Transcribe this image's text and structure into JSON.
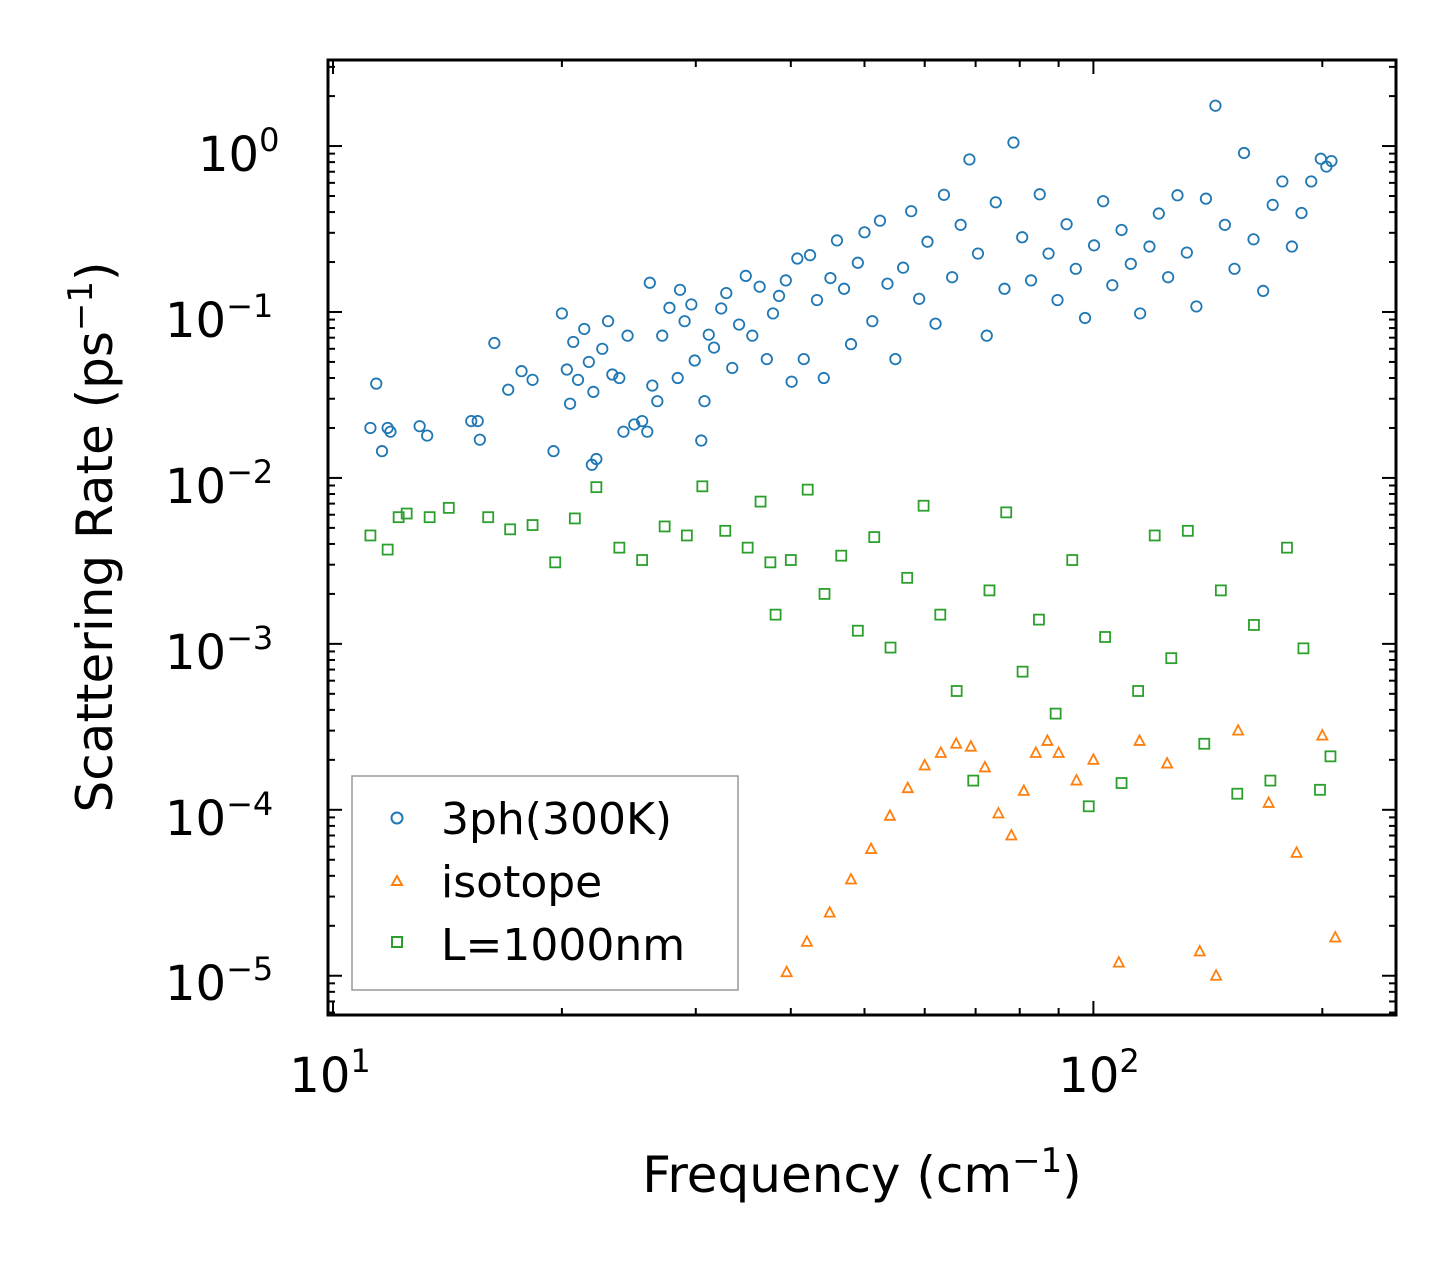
{
  "chart_data": {
    "type": "scatter",
    "title": "",
    "xlabel": "Frequency (cm",
    "xlabel_sup": "−1",
    "xlabel_end": ")",
    "ylabel": "Scattering Rate (ps",
    "ylabel_sup": "−1",
    "ylabel_end": ")",
    "xscale": "log",
    "yscale": "log",
    "xlim": [
      9.85,
      250
    ],
    "ylim": [
      5.8e-06,
      3.3
    ],
    "x_ticks": [
      {
        "value": 10,
        "base": "10",
        "exp": "1"
      },
      {
        "value": 100,
        "base": "10",
        "exp": "2"
      }
    ],
    "y_ticks": [
      {
        "value": 1,
        "base": "10",
        "exp": "0"
      },
      {
        "value": 0.1,
        "base": "10",
        "exp": "−1"
      },
      {
        "value": 0.01,
        "base": "10",
        "exp": "−2"
      },
      {
        "value": 0.001,
        "base": "10",
        "exp": "−3"
      },
      {
        "value": 0.0001,
        "base": "10",
        "exp": "−4"
      },
      {
        "value": 1e-05,
        "base": "10",
        "exp": "−5"
      }
    ],
    "grid": false,
    "legend_position": "lower-left",
    "series": [
      {
        "name": "3ph(300K)",
        "marker": "circle",
        "color": "#1f77b4",
        "points": [
          [
            11.2,
            0.02
          ],
          [
            11.4,
            0.037
          ],
          [
            11.6,
            0.0145
          ],
          [
            11.8,
            0.02
          ],
          [
            11.9,
            0.019
          ],
          [
            13.0,
            0.0205
          ],
          [
            13.3,
            0.018
          ],
          [
            15.2,
            0.022
          ],
          [
            15.5,
            0.022
          ],
          [
            15.6,
            0.017
          ],
          [
            16.3,
            0.065
          ],
          [
            17.0,
            0.034
          ],
          [
            17.7,
            0.044
          ],
          [
            18.3,
            0.039
          ],
          [
            19.5,
            0.0145
          ],
          [
            20.0,
            0.098
          ],
          [
            20.3,
            0.045
          ],
          [
            20.5,
            0.028
          ],
          [
            20.7,
            0.066
          ],
          [
            21.0,
            0.039
          ],
          [
            21.4,
            0.079
          ],
          [
            21.7,
            0.05
          ],
          [
            21.9,
            0.012
          ],
          [
            22.0,
            0.033
          ],
          [
            22.2,
            0.013
          ],
          [
            22.6,
            0.06
          ],
          [
            23.0,
            0.088
          ],
          [
            23.3,
            0.042
          ],
          [
            23.8,
            0.04
          ],
          [
            24.1,
            0.019
          ],
          [
            24.4,
            0.072
          ],
          [
            24.9,
            0.021
          ],
          [
            25.5,
            0.022
          ],
          [
            25.9,
            0.019
          ],
          [
            26.1,
            0.15
          ],
          [
            26.3,
            0.036
          ],
          [
            26.7,
            0.029
          ],
          [
            27.1,
            0.072
          ],
          [
            27.7,
            0.106
          ],
          [
            28.4,
            0.04
          ],
          [
            28.6,
            0.136
          ],
          [
            29.0,
            0.088
          ],
          [
            29.6,
            0.111
          ],
          [
            29.9,
            0.051
          ],
          [
            30.5,
            0.0168
          ],
          [
            30.8,
            0.029
          ],
          [
            31.2,
            0.073
          ],
          [
            31.7,
            0.061
          ],
          [
            32.4,
            0.105
          ],
          [
            32.9,
            0.13
          ],
          [
            33.5,
            0.046
          ],
          [
            34.2,
            0.084
          ],
          [
            34.9,
            0.165
          ],
          [
            35.6,
            0.072
          ],
          [
            36.4,
            0.142
          ],
          [
            37.2,
            0.052
          ],
          [
            37.9,
            0.098
          ],
          [
            38.6,
            0.125
          ],
          [
            39.4,
            0.155
          ],
          [
            40.1,
            0.038
          ],
          [
            40.8,
            0.21
          ],
          [
            41.6,
            0.052
          ],
          [
            42.4,
            0.22
          ],
          [
            43.3,
            0.118
          ],
          [
            44.2,
            0.04
          ],
          [
            45.1,
            0.16
          ],
          [
            46.0,
            0.27
          ],
          [
            47.0,
            0.138
          ],
          [
            48.0,
            0.064
          ],
          [
            49.0,
            0.198
          ],
          [
            50.0,
            0.302
          ],
          [
            51.2,
            0.088
          ],
          [
            52.4,
            0.355
          ],
          [
            53.6,
            0.148
          ],
          [
            54.9,
            0.052
          ],
          [
            56.2,
            0.185
          ],
          [
            57.6,
            0.405
          ],
          [
            59.0,
            0.12
          ],
          [
            60.5,
            0.265
          ],
          [
            62.0,
            0.085
          ],
          [
            63.6,
            0.508
          ],
          [
            65.2,
            0.162
          ],
          [
            66.9,
            0.335
          ],
          [
            68.7,
            0.83
          ],
          [
            70.5,
            0.225
          ],
          [
            72.4,
            0.072
          ],
          [
            74.4,
            0.458
          ],
          [
            76.4,
            0.138
          ],
          [
            78.5,
            1.05
          ],
          [
            80.6,
            0.282
          ],
          [
            82.8,
            0.155
          ],
          [
            85.0,
            0.512
          ],
          [
            87.3,
            0.225
          ],
          [
            89.7,
            0.118
          ],
          [
            92.2,
            0.338
          ],
          [
            94.8,
            0.182
          ],
          [
            97.5,
            0.092
          ],
          [
            100.2,
            0.252
          ],
          [
            103.0,
            0.465
          ],
          [
            105.9,
            0.145
          ],
          [
            108.9,
            0.312
          ],
          [
            112.0,
            0.195
          ],
          [
            115.2,
            0.098
          ],
          [
            118.5,
            0.248
          ],
          [
            121.9,
            0.392
          ],
          [
            125.4,
            0.162
          ],
          [
            129.0,
            0.505
          ],
          [
            132.7,
            0.228
          ],
          [
            136.6,
            0.108
          ],
          [
            140.6,
            0.482
          ],
          [
            144.7,
            1.75
          ],
          [
            148.9,
            0.335
          ],
          [
            153.3,
            0.182
          ],
          [
            157.8,
            0.908
          ],
          [
            162.4,
            0.274
          ],
          [
            167.2,
            0.134
          ],
          [
            172.1,
            0.442
          ],
          [
            177.2,
            0.612
          ],
          [
            182.4,
            0.248
          ],
          [
            187.8,
            0.395
          ],
          [
            193.4,
            0.612
          ],
          [
            199.1,
            0.838
          ],
          [
            202.5,
            0.752
          ],
          [
            205.6,
            0.812
          ]
        ]
      },
      {
        "name": "isotope",
        "marker": "triangle",
        "color": "#ff7f0e",
        "points": [
          [
            39.5,
            1.05e-05
          ],
          [
            42.0,
            1.6e-05
          ],
          [
            45.0,
            2.4e-05
          ],
          [
            48.0,
            3.8e-05
          ],
          [
            51.0,
            5.8e-05
          ],
          [
            54.0,
            9.2e-05
          ],
          [
            57.0,
            0.000135
          ],
          [
            60.0,
            0.000185
          ],
          [
            63.0,
            0.00022
          ],
          [
            66.0,
            0.00025
          ],
          [
            69.0,
            0.00024
          ],
          [
            72.0,
            0.00018
          ],
          [
            75.0,
            9.5e-05
          ],
          [
            78.0,
            7e-05
          ],
          [
            81.0,
            0.00013
          ],
          [
            84.0,
            0.00022
          ],
          [
            87.0,
            0.00026
          ],
          [
            90.0,
            0.00022
          ],
          [
            95.0,
            0.00015
          ],
          [
            100.0,
            0.0002
          ],
          [
            108.0,
            1.2e-05
          ],
          [
            115.0,
            0.00026
          ],
          [
            125.0,
            0.00019
          ],
          [
            138.0,
            1.4e-05
          ],
          [
            145.0,
            1e-05
          ],
          [
            155.0,
            0.0003
          ],
          [
            170.0,
            0.00011
          ],
          [
            185.0,
            5.5e-05
          ],
          [
            200.0,
            0.00028
          ],
          [
            208.0,
            1.7e-05
          ]
        ]
      },
      {
        "name": "L=1000nm",
        "marker": "square",
        "color": "#2ca02c",
        "points": [
          [
            11.2,
            0.0045
          ],
          [
            11.8,
            0.0037
          ],
          [
            12.2,
            0.0058
          ],
          [
            12.5,
            0.0061
          ],
          [
            13.4,
            0.0058
          ],
          [
            14.2,
            0.0066
          ],
          [
            16.0,
            0.0058
          ],
          [
            17.1,
            0.0049
          ],
          [
            18.3,
            0.0052
          ],
          [
            19.6,
            0.0031
          ],
          [
            20.8,
            0.0057
          ],
          [
            22.2,
            0.0088
          ],
          [
            23.8,
            0.0038
          ],
          [
            25.5,
            0.0032
          ],
          [
            27.3,
            0.0051
          ],
          [
            29.2,
            0.0045
          ],
          [
            30.6,
            0.0089
          ],
          [
            32.8,
            0.0048
          ],
          [
            35.1,
            0.0038
          ],
          [
            36.5,
            0.0072
          ],
          [
            37.6,
            0.0031
          ],
          [
            38.2,
            0.0015
          ],
          [
            40.0,
            0.0032
          ],
          [
            42.1,
            0.0085
          ],
          [
            44.3,
            0.002
          ],
          [
            46.6,
            0.0034
          ],
          [
            49.0,
            0.0012
          ],
          [
            51.5,
            0.0044
          ],
          [
            54.1,
            0.00095
          ],
          [
            56.9,
            0.0025
          ],
          [
            59.8,
            0.0068
          ],
          [
            62.9,
            0.0015
          ],
          [
            66.1,
            0.00052
          ],
          [
            69.5,
            0.00015
          ],
          [
            73.0,
            0.0021
          ],
          [
            76.8,
            0.0062
          ],
          [
            80.7,
            0.00068
          ],
          [
            84.8,
            0.0014
          ],
          [
            89.2,
            0.00038
          ],
          [
            93.8,
            0.0032
          ],
          [
            98.6,
            0.000105
          ],
          [
            103.6,
            0.0011
          ],
          [
            108.9,
            0.000145
          ],
          [
            114.5,
            0.00052
          ],
          [
            120.4,
            0.0045
          ],
          [
            126.6,
            0.00082
          ],
          [
            133.1,
            0.0048
          ],
          [
            139.9,
            0.00025
          ],
          [
            147.1,
            0.0021
          ],
          [
            154.6,
            0.000125
          ],
          [
            162.6,
            0.0013
          ],
          [
            170.9,
            0.00015
          ],
          [
            179.7,
            0.0038
          ],
          [
            188.9,
            0.00094
          ],
          [
            198.6,
            0.000132
          ],
          [
            205.0,
            0.00021
          ]
        ]
      }
    ]
  }
}
